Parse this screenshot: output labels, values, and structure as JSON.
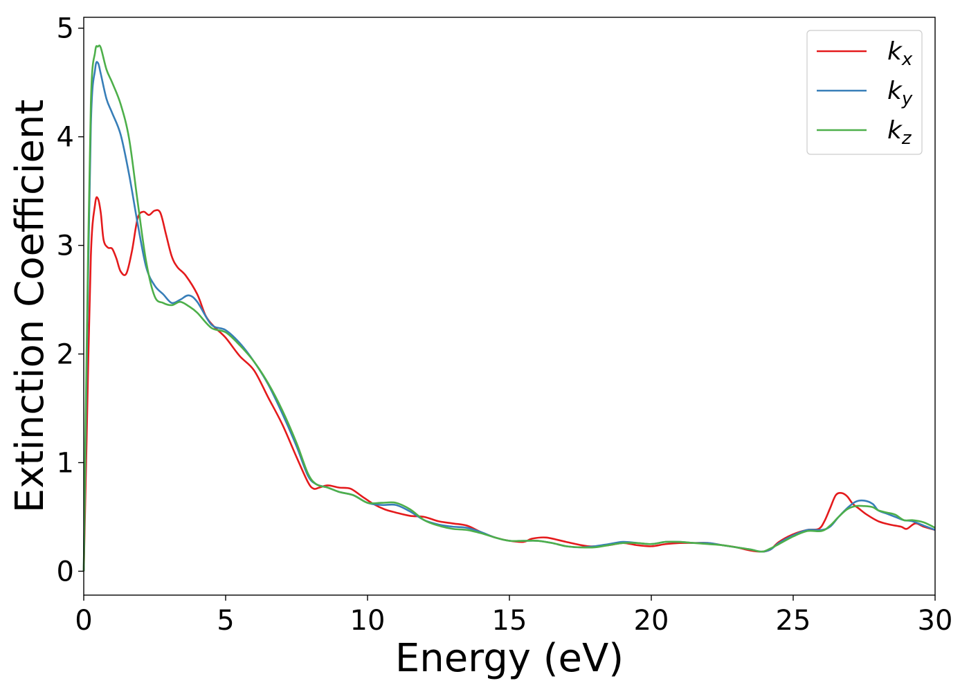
{
  "chart_data": {
    "type": "line",
    "title": "",
    "xlabel": "Energy (eV)",
    "ylabel": "Extinction Coefficient",
    "xlim": [
      0,
      30
    ],
    "ylim": [
      -0.22,
      5.1
    ],
    "xticks": [
      0,
      5,
      10,
      15,
      20,
      25,
      30
    ],
    "yticks": [
      0,
      1,
      2,
      3,
      4,
      5
    ],
    "grid": false,
    "legend_position": "top-right",
    "series": [
      {
        "name": "k",
        "subscript": "x",
        "color": "#e41a1c",
        "x": [
          0,
          0.1,
          0.25,
          0.4,
          0.5,
          0.6,
          0.7,
          0.85,
          1.0,
          1.15,
          1.3,
          1.5,
          1.7,
          1.9,
          2.1,
          2.3,
          2.5,
          2.7,
          2.9,
          3.1,
          3.3,
          3.6,
          4.0,
          4.3,
          4.6,
          5.0,
          5.5,
          6.0,
          6.5,
          7.0,
          7.5,
          7.9,
          8.1,
          8.3,
          8.6,
          9.0,
          9.4,
          9.8,
          10.2,
          10.6,
          11.0,
          11.5,
          12.0,
          12.5,
          13.0,
          13.5,
          14.0,
          14.5,
          15.0,
          15.5,
          15.8,
          16.3,
          17.0,
          17.8,
          18.5,
          19.0,
          19.5,
          20.0,
          20.5,
          21.0,
          21.5,
          22.0,
          22.5,
          23.0,
          23.5,
          23.9,
          24.2,
          24.5,
          25.0,
          25.5,
          25.9,
          26.1,
          26.3,
          26.5,
          26.7,
          26.9,
          27.1,
          27.3,
          27.6,
          28.0,
          28.4,
          28.8,
          29.0,
          29.3,
          29.6,
          30.0
        ],
        "y": [
          0,
          1.2,
          2.9,
          3.38,
          3.43,
          3.3,
          3.05,
          2.98,
          2.97,
          2.88,
          2.76,
          2.74,
          2.95,
          3.25,
          3.31,
          3.28,
          3.32,
          3.3,
          3.1,
          2.9,
          2.8,
          2.72,
          2.55,
          2.35,
          2.25,
          2.15,
          1.98,
          1.85,
          1.6,
          1.35,
          1.05,
          0.82,
          0.76,
          0.77,
          0.79,
          0.77,
          0.76,
          0.69,
          0.62,
          0.57,
          0.54,
          0.51,
          0.5,
          0.46,
          0.44,
          0.42,
          0.36,
          0.31,
          0.28,
          0.27,
          0.3,
          0.31,
          0.27,
          0.23,
          0.24,
          0.26,
          0.24,
          0.23,
          0.25,
          0.26,
          0.26,
          0.26,
          0.24,
          0.22,
          0.19,
          0.18,
          0.2,
          0.27,
          0.34,
          0.38,
          0.39,
          0.46,
          0.58,
          0.7,
          0.72,
          0.69,
          0.62,
          0.58,
          0.52,
          0.46,
          0.43,
          0.41,
          0.39,
          0.44,
          0.41,
          0.38
        ]
      },
      {
        "name": "k",
        "subscript": "y",
        "color": "#377eb8",
        "x": [
          0,
          0.1,
          0.25,
          0.4,
          0.5,
          0.6,
          0.8,
          1.0,
          1.3,
          1.6,
          1.9,
          2.2,
          2.5,
          2.8,
          3.1,
          3.4,
          3.7,
          4.0,
          4.5,
          5.0,
          5.5,
          6.0,
          6.5,
          7.0,
          7.5,
          7.9,
          8.2,
          8.6,
          9.0,
          9.5,
          10.0,
          10.5,
          11.0,
          11.5,
          12.0,
          12.5,
          13.0,
          13.5,
          14.0,
          14.5,
          15.0,
          15.5,
          16.0,
          16.5,
          17.0,
          17.5,
          18.0,
          18.5,
          19.0,
          19.5,
          20.0,
          20.5,
          21.0,
          21.5,
          22.0,
          22.5,
          23.0,
          23.5,
          23.9,
          24.2,
          24.5,
          25.0,
          25.5,
          26.0,
          26.3,
          26.6,
          26.9,
          27.2,
          27.5,
          27.8,
          28.0,
          28.3,
          28.6,
          28.9,
          29.2,
          29.6,
          30.0
        ],
        "y": [
          0,
          1.8,
          4.1,
          4.62,
          4.68,
          4.58,
          4.35,
          4.22,
          4.02,
          3.65,
          3.2,
          2.8,
          2.63,
          2.55,
          2.47,
          2.5,
          2.54,
          2.48,
          2.27,
          2.22,
          2.1,
          1.93,
          1.72,
          1.45,
          1.15,
          0.88,
          0.8,
          0.77,
          0.73,
          0.7,
          0.63,
          0.61,
          0.61,
          0.55,
          0.47,
          0.43,
          0.41,
          0.4,
          0.36,
          0.31,
          0.28,
          0.28,
          0.28,
          0.26,
          0.23,
          0.22,
          0.23,
          0.25,
          0.27,
          0.26,
          0.25,
          0.27,
          0.27,
          0.26,
          0.26,
          0.24,
          0.22,
          0.2,
          0.18,
          0.2,
          0.26,
          0.33,
          0.38,
          0.38,
          0.41,
          0.5,
          0.58,
          0.64,
          0.65,
          0.62,
          0.56,
          0.53,
          0.5,
          0.47,
          0.46,
          0.42,
          0.38
        ]
      },
      {
        "name": "k",
        "subscript": "z",
        "color": "#4daf4a",
        "x": [
          0,
          0.1,
          0.25,
          0.4,
          0.5,
          0.6,
          0.8,
          1.0,
          1.3,
          1.6,
          1.9,
          2.2,
          2.5,
          2.8,
          3.1,
          3.4,
          3.7,
          4.0,
          4.5,
          5.0,
          5.5,
          6.0,
          6.5,
          7.0,
          7.5,
          7.9,
          8.2,
          8.6,
          9.0,
          9.5,
          10.0,
          10.5,
          11.0,
          11.5,
          12.0,
          12.5,
          13.0,
          13.5,
          14.0,
          14.5,
          15.0,
          15.5,
          16.0,
          16.5,
          17.0,
          17.5,
          18.0,
          18.5,
          19.0,
          19.5,
          20.0,
          20.5,
          21.0,
          21.5,
          22.0,
          22.5,
          23.0,
          23.5,
          23.9,
          24.2,
          24.5,
          25.0,
          25.5,
          26.0,
          26.3,
          26.6,
          26.9,
          27.2,
          27.5,
          27.8,
          28.0,
          28.3,
          28.6,
          28.9,
          29.2,
          29.6,
          30.0
        ],
        "y": [
          0,
          2.0,
          4.3,
          4.78,
          4.83,
          4.82,
          4.62,
          4.5,
          4.3,
          3.98,
          3.4,
          2.85,
          2.53,
          2.47,
          2.45,
          2.48,
          2.44,
          2.38,
          2.24,
          2.2,
          2.08,
          1.93,
          1.73,
          1.48,
          1.18,
          0.9,
          0.8,
          0.77,
          0.73,
          0.7,
          0.63,
          0.63,
          0.63,
          0.57,
          0.47,
          0.42,
          0.39,
          0.38,
          0.35,
          0.31,
          0.28,
          0.28,
          0.28,
          0.26,
          0.23,
          0.22,
          0.22,
          0.24,
          0.26,
          0.26,
          0.25,
          0.27,
          0.27,
          0.26,
          0.25,
          0.24,
          0.22,
          0.2,
          0.18,
          0.21,
          0.25,
          0.32,
          0.37,
          0.37,
          0.42,
          0.5,
          0.57,
          0.6,
          0.6,
          0.59,
          0.56,
          0.54,
          0.52,
          0.47,
          0.47,
          0.45,
          0.4
        ]
      }
    ]
  }
}
